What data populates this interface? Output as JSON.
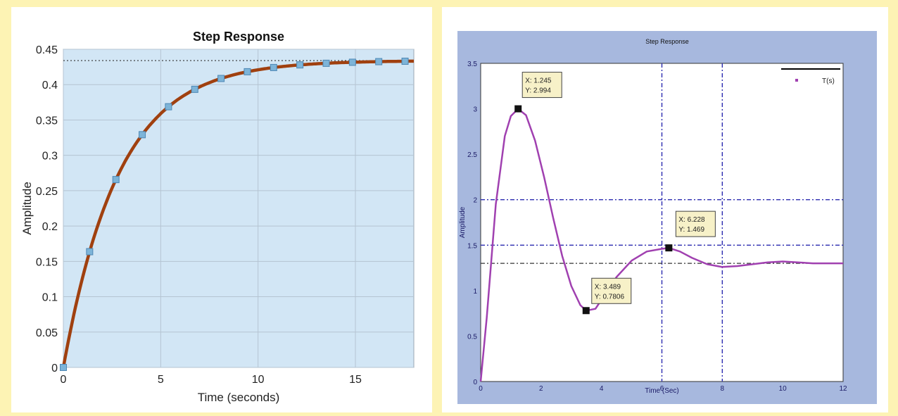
{
  "chart_data": [
    {
      "type": "line",
      "title": "Step Response",
      "xlabel": "Time (seconds)",
      "ylabel": "Amplitude",
      "xlim": [
        0,
        18
      ],
      "ylim": [
        0,
        0.45
      ],
      "xticks": [
        "0",
        "5",
        "10",
        "15"
      ],
      "xtick_values": [
        0,
        5,
        10,
        15
      ],
      "yticks": [
        "0",
        "0.05",
        "0.1",
        "0.15",
        "0.2",
        "0.25",
        "0.3",
        "0.35",
        "0.4",
        "0.45"
      ],
      "ytick_values": [
        0,
        0.05,
        0.1,
        0.15,
        0.2,
        0.25,
        0.3,
        0.35,
        0.4,
        0.45
      ],
      "grid": true,
      "final_value": 0.434,
      "curve": {
        "gain": 0.434,
        "time_constant": 2.85
      },
      "markers_x": [
        0,
        1.35,
        2.7,
        4.05,
        5.4,
        6.75,
        8.1,
        9.45,
        10.8,
        12.15,
        13.5,
        14.85,
        16.2,
        17.55
      ],
      "colors": {
        "line": "#a0400f",
        "marker": "#7db4d8",
        "background": "#d2e6f5",
        "grid": "#b5c4d2",
        "reference": "#333333"
      }
    },
    {
      "type": "line",
      "title": "Step Response",
      "xlabel": "Time (Sec)",
      "ylabel": "Amplitude",
      "xlim": [
        0,
        12
      ],
      "ylim": [
        0,
        3.5
      ],
      "xticks": [
        "0",
        "2",
        "4",
        "6",
        "8",
        "10",
        "12"
      ],
      "xtick_values": [
        0,
        2,
        4,
        6,
        8,
        10,
        12
      ],
      "yticks": [
        "0",
        "0.5",
        "1",
        "1.5",
        "2",
        "2.5",
        "3",
        "3.5"
      ],
      "ytick_values": [
        0,
        0.5,
        1,
        1.5,
        2,
        2.5,
        3,
        3.5
      ],
      "legend": "T(s)",
      "legend_position": "top-right",
      "grid_x": [
        6,
        8
      ],
      "grid_y": [
        1.5,
        2
      ],
      "reference_y": 1.3,
      "x": [
        0,
        0.2,
        0.5,
        0.8,
        1.0,
        1.24,
        1.5,
        1.8,
        2.1,
        2.4,
        2.7,
        3.0,
        3.3,
        3.49,
        3.8,
        4.1,
        4.5,
        5.0,
        5.5,
        6.0,
        6.23,
        6.6,
        7.0,
        7.5,
        8.0,
        8.5,
        9.0,
        9.5,
        10.0,
        10.5,
        11.0,
        11.5,
        12.0
      ],
      "y": [
        0,
        0.7,
        1.95,
        2.7,
        2.92,
        3.0,
        2.93,
        2.65,
        2.25,
        1.8,
        1.38,
        1.05,
        0.84,
        0.78,
        0.8,
        0.95,
        1.15,
        1.33,
        1.43,
        1.46,
        1.47,
        1.43,
        1.36,
        1.29,
        1.26,
        1.27,
        1.29,
        1.31,
        1.32,
        1.31,
        1.3,
        1.3,
        1.3
      ],
      "datatips": [
        {
          "x": 1.24,
          "y": 3.0,
          "label_x": "X: 1.245",
          "label_y": "Y: 2.994"
        },
        {
          "x": 3.49,
          "y": 0.78,
          "label_x": "X: 3.489",
          "label_y": "Y: 0.7806"
        },
        {
          "x": 6.23,
          "y": 1.47,
          "label_x": "X: 6.228",
          "label_y": "Y: 1.469"
        }
      ],
      "colors": {
        "line": "#a040b0",
        "frame": "#a7b8de",
        "grid": "#2b2bb0",
        "reference": "#333333",
        "tip_bg": "#f7f1c8"
      }
    }
  ]
}
